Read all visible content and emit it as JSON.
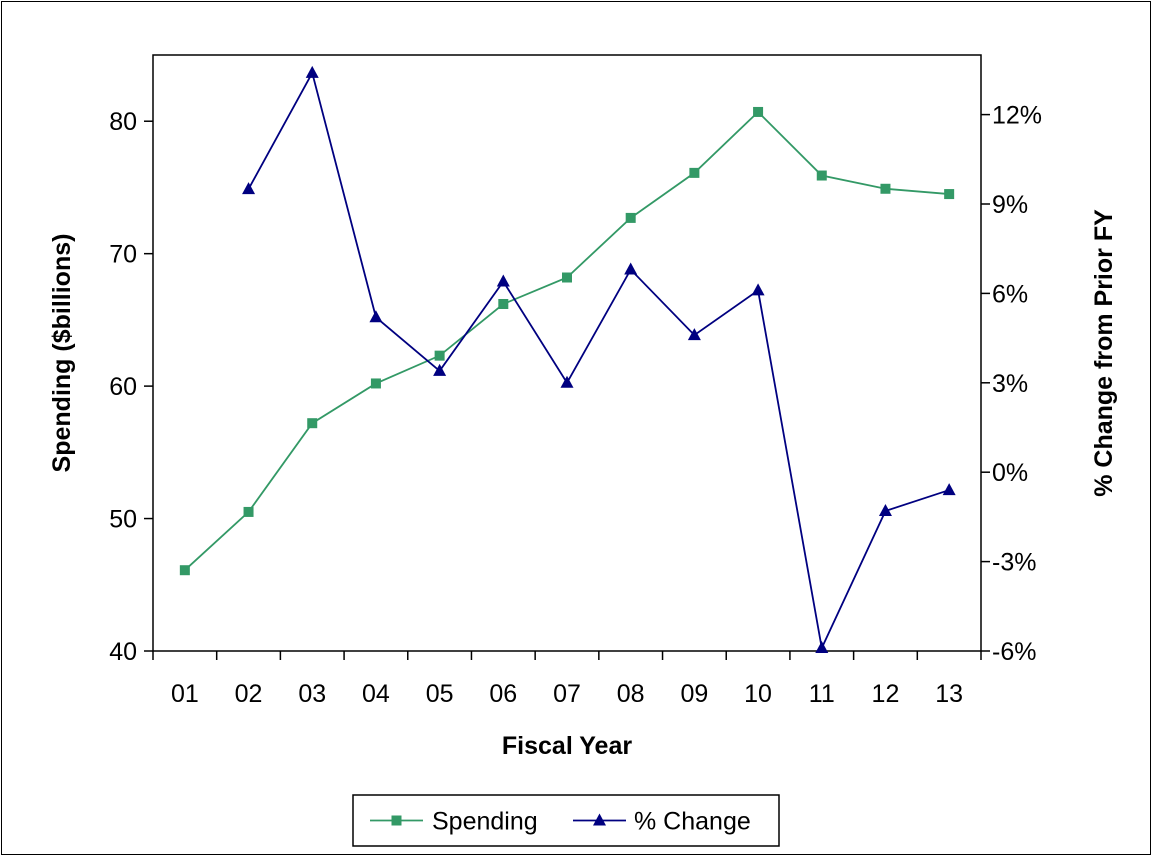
{
  "chart_data": {
    "type": "line",
    "title": "",
    "xlabel": "Fiscal Year",
    "ylabel_left": "Spending ($billions)",
    "ylabel_right": "% Change from Prior FY",
    "categories": [
      "01",
      "02",
      "03",
      "04",
      "05",
      "06",
      "07",
      "08",
      "09",
      "10",
      "11",
      "12",
      "13"
    ],
    "y_left": {
      "min": 40,
      "max": 85,
      "ticks": [
        40,
        50,
        60,
        70,
        80
      ],
      "tick_labels": [
        "40",
        "50",
        "60",
        "70",
        "80"
      ]
    },
    "y_right": {
      "min": -6,
      "max": 14,
      "ticks": [
        -6,
        -3,
        0,
        3,
        6,
        9,
        12
      ],
      "tick_labels": [
        "-6%",
        "-3%",
        "0%",
        "3%",
        "6%",
        "9%",
        "12%"
      ]
    },
    "grid": false,
    "legend_position": "bottom",
    "series": [
      {
        "name": "Spending",
        "axis": "left",
        "marker": "square",
        "color": "#339966",
        "values": [
          46.1,
          50.5,
          57.2,
          60.2,
          62.3,
          66.2,
          68.2,
          72.7,
          76.1,
          80.7,
          75.9,
          74.9,
          74.5
        ]
      },
      {
        "name": "% Change",
        "axis": "right",
        "marker": "triangle",
        "color": "#000080",
        "values": [
          null,
          9.5,
          13.4,
          5.2,
          3.4,
          6.4,
          3.0,
          6.8,
          4.6,
          6.1,
          -5.9,
          -1.3,
          -0.6
        ]
      }
    ]
  }
}
